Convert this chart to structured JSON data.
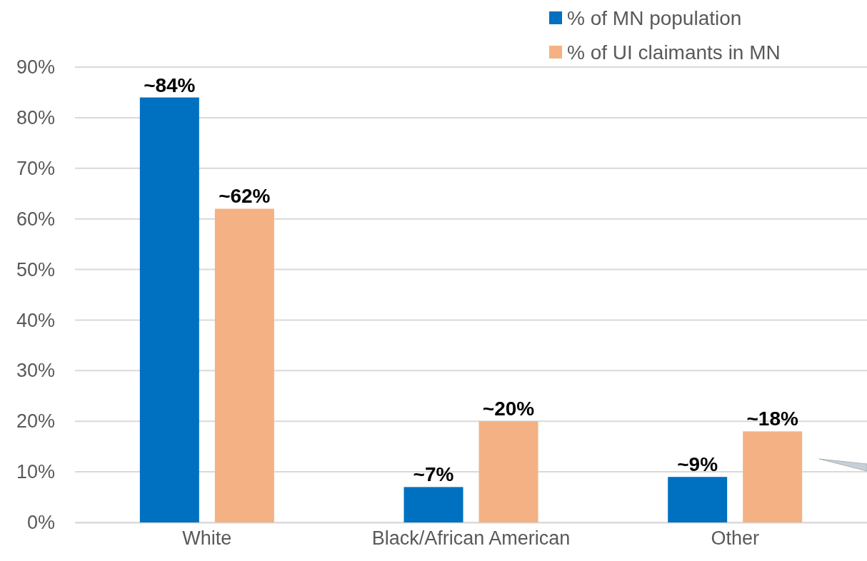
{
  "chart_data": {
    "type": "bar",
    "categories": [
      "White",
      "Black/African American",
      "Other"
    ],
    "series": [
      {
        "name": "% of MN population",
        "color": "#0070c0",
        "values": [
          84,
          7,
          9
        ],
        "value_labels": [
          "~84%",
          "~7%",
          "~9%"
        ]
      },
      {
        "name": "% of UI claimants in MN",
        "color": "#f4b183",
        "values": [
          62,
          20,
          18
        ],
        "value_labels": [
          "~62%",
          "~20%",
          "~18%"
        ]
      }
    ],
    "ylim": [
      0,
      90
    ],
    "yticks": [
      {
        "value": 0,
        "label": "0%"
      },
      {
        "value": 10,
        "label": "10%"
      },
      {
        "value": 20,
        "label": "20%"
      },
      {
        "value": 30,
        "label": "30%"
      },
      {
        "value": 40,
        "label": "40%"
      },
      {
        "value": 50,
        "label": "50%"
      },
      {
        "value": 60,
        "label": "60%"
      },
      {
        "value": 70,
        "label": "70%"
      },
      {
        "value": 80,
        "label": "80%"
      },
      {
        "value": 90,
        "label": "90%"
      }
    ],
    "grid": "y",
    "legend": "top right"
  }
}
